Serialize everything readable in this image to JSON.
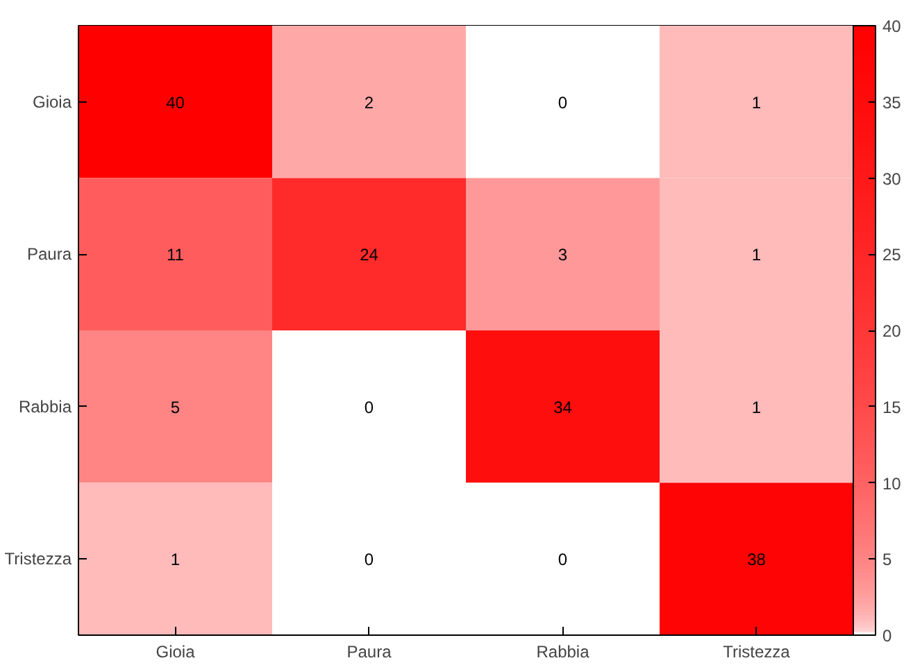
{
  "chart_data": {
    "type": "heatmap",
    "categories": [
      "Gioia",
      "Paura",
      "Rabbia",
      "Tristezza"
    ],
    "y_categories": [
      "Gioia",
      "Paura",
      "Rabbia",
      "Tristezza"
    ],
    "cells": [
      [
        40,
        2,
        0,
        1
      ],
      [
        11,
        24,
        3,
        1
      ],
      [
        5,
        0,
        34,
        1
      ],
      [
        1,
        0,
        0,
        38
      ]
    ],
    "data_labels": true,
    "clim": [
      0,
      40
    ],
    "cticks": [
      0,
      5,
      10,
      15,
      20,
      25,
      30,
      35,
      40
    ]
  }
}
